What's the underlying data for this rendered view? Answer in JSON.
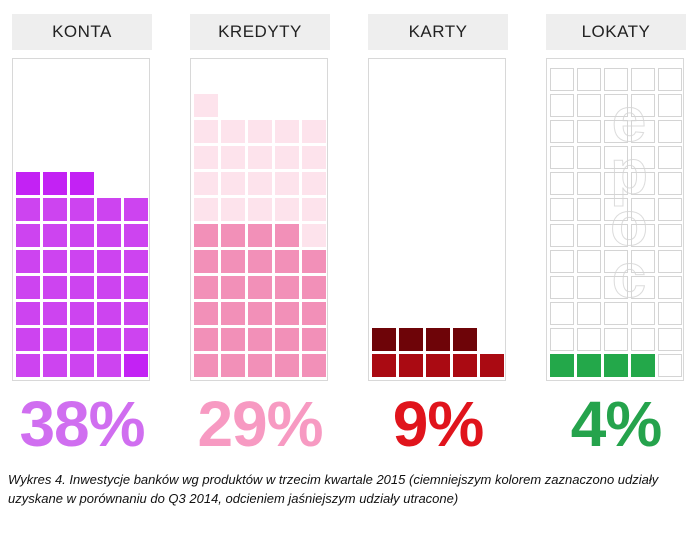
{
  "chart_data": {
    "type": "waffle",
    "unit": "one square = 1 percentage point",
    "panels": [
      {
        "label": "KONTA",
        "value": 38,
        "display": "38%",
        "gained": 38,
        "lost": 0,
        "gained_color": "#cd44f0",
        "lost_color": "#e0a6f2",
        "text_color": "#d06ef0"
      },
      {
        "label": "KREDYTY",
        "value": 29,
        "display": "29%",
        "gained": 29,
        "lost": 22,
        "gained_color": "#f290b8",
        "lost_color": "#fde3ec",
        "text_color": "#f79ac2"
      },
      {
        "label": "KARTY",
        "value": 9,
        "display": "9%",
        "gained": 9,
        "lost": 0,
        "gained_color": "#aa0a12",
        "lost_color": "#ffd6d6",
        "text_color": "#e0141c"
      },
      {
        "label": "LOKATY",
        "value": 4,
        "display": "4%",
        "gained": 4,
        "lost": 0,
        "gained_color": "#23a84a",
        "lost_color": "#cdeed6",
        "text_color": "#25a34c"
      }
    ],
    "caption": "Wykres 4. Inwestycje banków wg produktów w trzecim kwartale 2015 (ciemniejszym kolorem zaznaczono udziały uzyskane w porównaniu do Q3 2014, odcieniem jaśniejszym udziały utracone)"
  },
  "watermark": "epoc"
}
